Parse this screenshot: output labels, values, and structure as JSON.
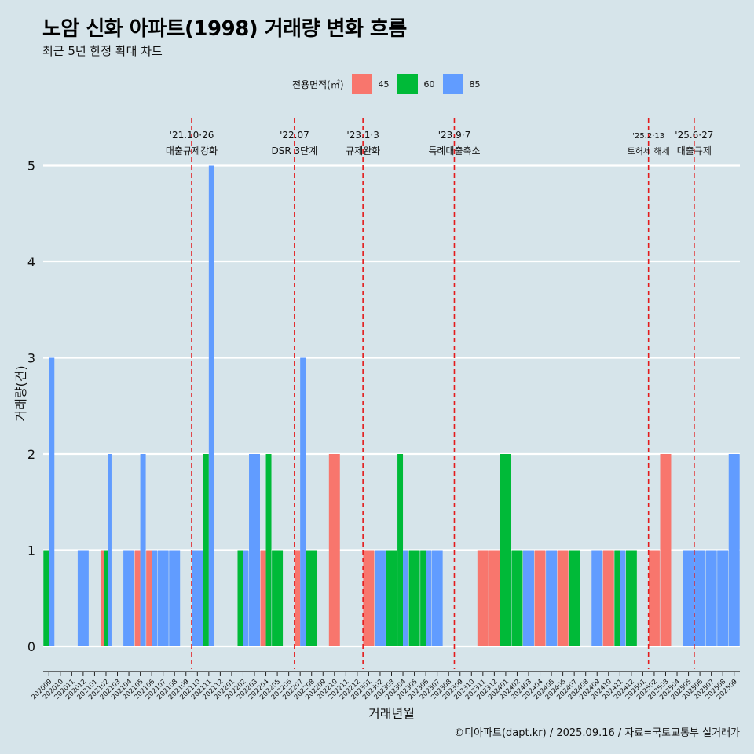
{
  "header": {
    "title": "노암 신화 아파트(1998) 거래량 변화 흐름",
    "subtitle": "최근 5년 한정 확대 차트"
  },
  "footer": {
    "caption": "©디아파트(dapt.kr) / 2025.09.16 / 자료=국토교통부 실거래가"
  },
  "colors": {
    "background": "#d6e4ea",
    "s45": "#f8766d",
    "s60": "#00ba38",
    "s85": "#619cff",
    "event_line": "#e41a1c",
    "grid": "#ffffff"
  },
  "chart_data": {
    "type": "bar",
    "xlabel": "거래년월",
    "ylabel": "거래량(건)",
    "ylim": [
      0,
      5
    ],
    "yticks": [
      0,
      1,
      2,
      3,
      4,
      5
    ],
    "grid": true,
    "legend_position": "top",
    "legend_title": "전용면적(㎡)",
    "categories": [
      "202009",
      "202010",
      "202011",
      "202012",
      "202101",
      "202102",
      "202103",
      "202104",
      "202105",
      "202106",
      "202107",
      "202108",
      "202109",
      "202110",
      "202111",
      "202112",
      "202201",
      "202202",
      "202203",
      "202204",
      "202205",
      "202206",
      "202207",
      "202208",
      "202209",
      "202210",
      "202211",
      "202212",
      "202301",
      "202302",
      "202303",
      "202304",
      "202305",
      "202306",
      "202307",
      "202308",
      "202309",
      "202310",
      "202311",
      "202312",
      "202401",
      "202402",
      "202403",
      "202404",
      "202405",
      "202406",
      "202407",
      "202408",
      "202409",
      "202410",
      "202411",
      "202412",
      "202501",
      "202502",
      "202503",
      "202504",
      "202505",
      "202506",
      "202507",
      "202508",
      "202509"
    ],
    "series": [
      {
        "name": "45",
        "values": [
          0,
          0,
          0,
          0,
          0,
          1,
          0,
          0,
          1,
          1,
          0,
          0,
          0,
          0,
          0,
          0,
          0,
          0,
          0,
          1,
          0,
          0,
          1,
          0,
          0,
          2,
          0,
          0,
          1,
          0,
          0,
          0,
          0,
          0,
          0,
          0,
          0,
          0,
          1,
          1,
          0,
          0,
          0,
          1,
          0,
          1,
          0,
          0,
          0,
          1,
          0,
          0,
          0,
          1,
          2,
          0,
          0,
          0,
          0,
          0,
          0
        ]
      },
      {
        "name": "60",
        "values": [
          1,
          0,
          0,
          0,
          0,
          1,
          0,
          0,
          0,
          0,
          0,
          0,
          0,
          0,
          2,
          0,
          0,
          1,
          0,
          2,
          1,
          0,
          0,
          1,
          0,
          0,
          0,
          0,
          0,
          0,
          1,
          2,
          1,
          1,
          0,
          0,
          0,
          0,
          0,
          0,
          2,
          1,
          0,
          0,
          0,
          0,
          1,
          0,
          0,
          0,
          1,
          1,
          0,
          0,
          0,
          0,
          0,
          0,
          0,
          0,
          0
        ]
      },
      {
        "name": "85",
        "values": [
          3,
          0,
          0,
          1,
          0,
          2,
          0,
          1,
          2,
          1,
          1,
          1,
          0,
          1,
          5,
          0,
          0,
          1,
          2,
          0,
          0,
          0,
          3,
          0,
          0,
          0,
          0,
          0,
          0,
          1,
          0,
          1,
          0,
          1,
          1,
          0,
          0,
          0,
          0,
          0,
          0,
          0,
          1,
          0,
          1,
          0,
          0,
          0,
          1,
          0,
          1,
          0,
          0,
          0,
          0,
          0,
          1,
          1,
          1,
          1,
          2
        ]
      }
    ],
    "events": [
      {
        "label_top": "'21.10·26",
        "label_bottom": "대출규제강화",
        "after_category": "202110",
        "position": 13.0
      },
      {
        "label_top": "'22.07",
        "label_bottom": "DSR 3단계",
        "after_category": "202207",
        "position": 22.0
      },
      {
        "label_top": "'23.1·3",
        "label_bottom": "규제완화",
        "after_category": "202301",
        "position": 28.0
      },
      {
        "label_top": "'23.9·7",
        "label_bottom": "특례대출축소",
        "after_category": "202309",
        "position": 36.0
      },
      {
        "label_top": "'25.2·13",
        "label_bottom": "토허제 해제",
        "after_category": "202502",
        "position": 53.0
      },
      {
        "label_top": "'25.6·27",
        "label_bottom": "대출규제",
        "after_category": "202506",
        "position": 57.0
      }
    ]
  }
}
